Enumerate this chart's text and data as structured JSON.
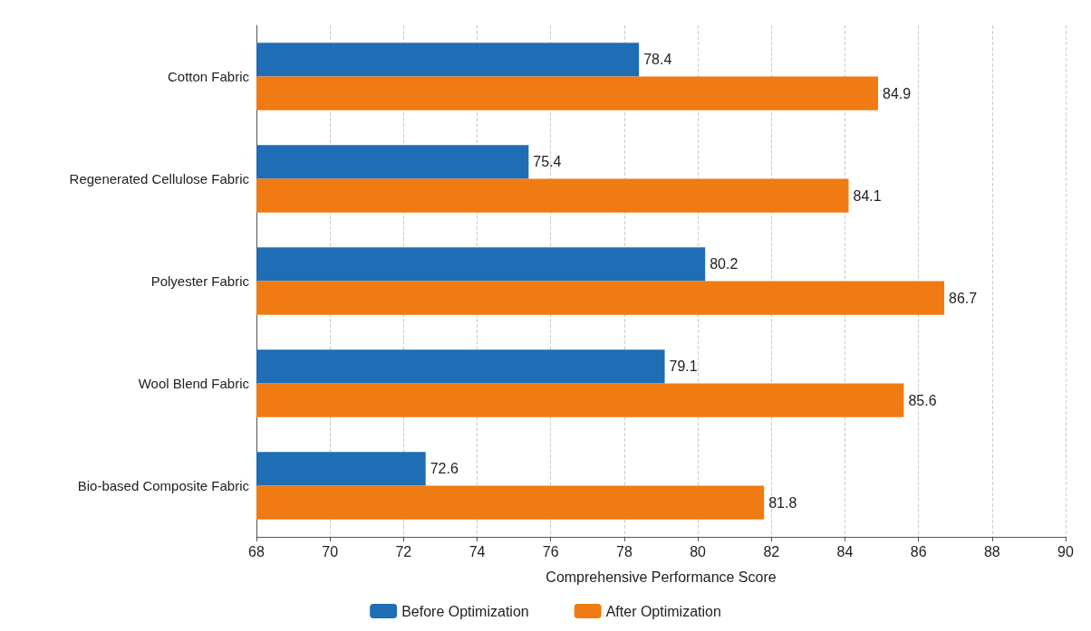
{
  "chart_data": {
    "type": "bar",
    "orientation": "horizontal",
    "xlabel": "Comprehensive Performance Score",
    "categories": [
      "Cotton Fabric",
      "Regenerated Cellulose Fabric",
      "Polyester Fabric",
      "Wool Blend Fabric",
      "Bio-based Composite Fabric"
    ],
    "series": [
      {
        "name": "Before Optimization",
        "color": "#1f6db5",
        "values": [
          78.4,
          75.4,
          80.2,
          79.1,
          72.6
        ]
      },
      {
        "name": "After Optimization",
        "color": "#f07b12",
        "values": [
          84.9,
          84.1,
          86.7,
          85.6,
          81.8
        ]
      }
    ],
    "xlim": [
      68,
      90
    ],
    "xticks": [
      68,
      70,
      72,
      74,
      76,
      78,
      80,
      82,
      84,
      86,
      88,
      90
    ],
    "grid": "x",
    "legend": "bottom",
    "data_labels": true
  }
}
